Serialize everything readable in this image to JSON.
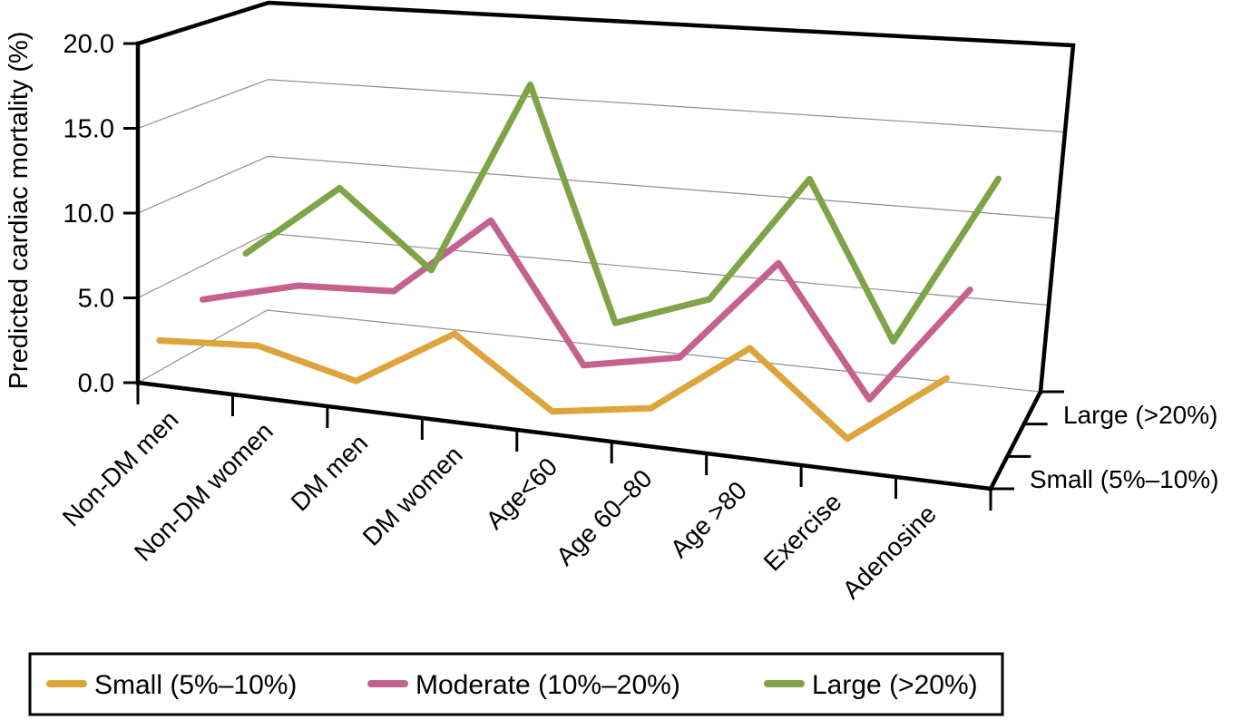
{
  "chart_data": {
    "type": "line",
    "projection": "3d",
    "title": "",
    "ylabel": "Predicted cardiac mortality (%)",
    "ylim": [
      0,
      20
    ],
    "ytick_step": 5,
    "ytick_labels": [
      "0.0",
      "5.0",
      "10.0",
      "15.0",
      "20.0"
    ],
    "grid": true,
    "categories": [
      "Non-DM men",
      "Non-DM women",
      "DM men",
      "DM women",
      "Age<60",
      "Age 60–80",
      "Age >80",
      "Exercise",
      "Adenosine"
    ],
    "series": [
      {
        "name": "Small (5%–10%)",
        "color": "#DDA43C",
        "depth": "front",
        "values": [
          1.8,
          2.2,
          0.8,
          4.3,
          0.4,
          1.3,
          5.5,
          0.9,
          5.1
        ]
      },
      {
        "name": "Moderate (10%–20%)",
        "color": "#C4618E",
        "depth": "middle",
        "values": [
          2.9,
          4.4,
          4.7,
          9.6,
          1.5,
          2.6,
          8.8,
          1.4,
          8.4
        ]
      },
      {
        "name": "Large (>20%)",
        "color": "#7FA347",
        "depth": "back",
        "values": [
          4.4,
          9.1,
          4.5,
          16.5,
          2.4,
          4.4,
          12.1,
          3.0,
          13.0
        ]
      }
    ],
    "depth_axis": {
      "labels": [
        "Large (>20%)",
        "Small (5%–10%)"
      ]
    },
    "legend": {
      "position": "bottom",
      "entries": [
        "Small (5%–10%)",
        "Moderate (10%–20%)",
        "Large (>20%)"
      ]
    },
    "colors": {
      "frame": "#000000",
      "gridline": "#8f8f8f",
      "background": "#ffffff"
    }
  }
}
